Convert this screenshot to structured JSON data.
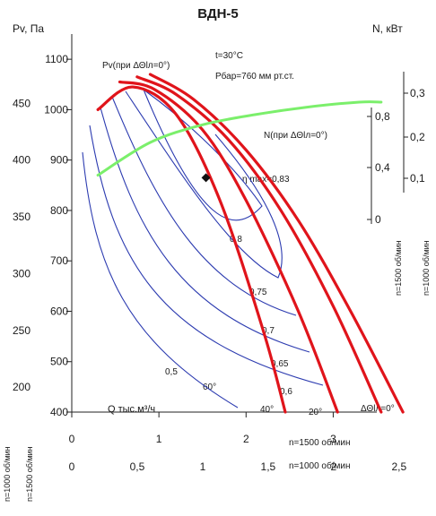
{
  "chart_data": {
    "type": "line",
    "title": "ВДН-5",
    "left_axis_outer_label": "Pv, Па",
    "right_axis_label": "N, кВт",
    "x_axis_label": "Q тыс.м³/ч",
    "conditions": [
      "t=30°C",
      "Pбар=760 мм рт.ст."
    ],
    "x_axes": [
      {
        "label": "n=1500 об/мин",
        "ticks": [
          "0",
          "1",
          "2",
          "3"
        ],
        "range": [
          0,
          3.5
        ]
      },
      {
        "label": "n=1000 об/мин",
        "ticks": [
          "0",
          "0,5",
          "1",
          "1,5",
          "2",
          "2,5"
        ],
        "range": [
          0,
          2.33
        ]
      }
    ],
    "y_axes": [
      {
        "label": "n=1500 об/мин",
        "ticks": [
          "400",
          "500",
          "600",
          "700",
          "800",
          "900",
          "1000",
          "1100"
        ],
        "range": [
          400,
          1150
        ]
      },
      {
        "label": "n=1000 об/мин",
        "ticks": [
          "200",
          "250",
          "300",
          "350",
          "400",
          "450"
        ],
        "range": [
          178,
          511
        ]
      },
      {
        "label": "n=1500 об/мин",
        "ticks": [
          "0",
          "0,4",
          "0,8"
        ],
        "unit": "N, кВт"
      },
      {
        "label": "n=1000 об/мин",
        "ticks": [
          "0,1",
          "0,2",
          "0,3"
        ],
        "unit": "N, кВт"
      }
    ],
    "pressure_curve_label": "Pv(при ΔΘlл=0°)",
    "power_curve_label": "N(при ΔΘlл=0°)",
    "efficiency_max_label": "η max=0,83",
    "efficiency_max_point": {
      "x": 1.54,
      "y": 865
    },
    "blade_angle_labels": [
      "60°",
      "40°",
      "20°",
      "ΔΘlл=0°"
    ],
    "efficiency_labels": [
      "0,8",
      "0,75",
      "0,7",
      "0,65",
      "0,6",
      "0,5"
    ],
    "series": [
      {
        "name": "60°",
        "x": [
          0.3,
          0.7,
          1.2,
          1.7,
          2.2,
          2.45
        ],
        "y": [
          1000,
          1045,
          990,
          820,
          560,
          400
        ]
      },
      {
        "name": "40°",
        "x": [
          0.55,
          0.95,
          1.5,
          2.0,
          2.6,
          3.05
        ],
        "y": [
          1055,
          1040,
          960,
          820,
          600,
          400
        ]
      },
      {
        "name": "20°",
        "x": [
          0.75,
          1.2,
          1.8,
          2.4,
          3.0,
          3.55
        ],
        "y": [
          1065,
          1030,
          940,
          800,
          610,
          400
        ]
      },
      {
        "name": "ΔΘlл=0°",
        "x": [
          0.9,
          1.4,
          2.0,
          2.6,
          3.2,
          3.8
        ],
        "y": [
          1070,
          1020,
          920,
          780,
          600,
          400
        ]
      }
    ],
    "power_curve": {
      "x": [
        0.3,
        0.9,
        1.5,
        2.1,
        2.7,
        3.3,
        3.55
      ],
      "y": [
        870,
        935,
        970,
        990,
        1005,
        1015,
        1015
      ]
    }
  }
}
